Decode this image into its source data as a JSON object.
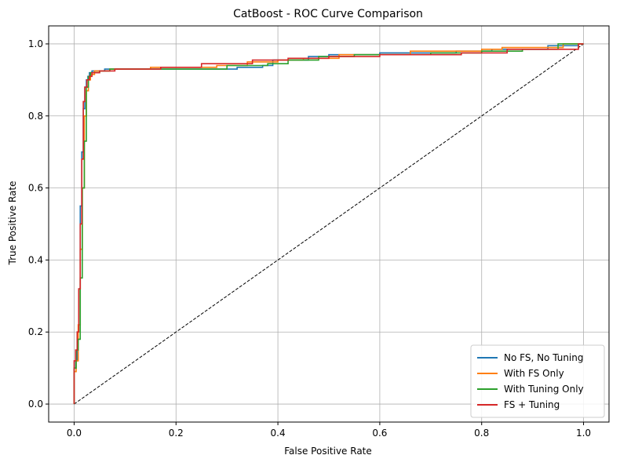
{
  "chart_data": {
    "type": "line",
    "title": "CatBoost - ROC Curve Comparison",
    "xlabel": "False Positive Rate",
    "ylabel": "True Positive Rate",
    "xlim": [
      -0.05,
      1.05
    ],
    "ylim": [
      -0.05,
      1.05
    ],
    "xticks": [
      0.0,
      0.2,
      0.4,
      0.6,
      0.8,
      1.0
    ],
    "yticks": [
      0.0,
      0.2,
      0.4,
      0.6,
      0.8,
      1.0
    ],
    "xtick_labels": [
      "0.0",
      "0.2",
      "0.4",
      "0.6",
      "0.8",
      "1.0"
    ],
    "ytick_labels": [
      "0.0",
      "0.2",
      "0.4",
      "0.6",
      "0.8",
      "1.0"
    ],
    "grid": true,
    "legend_position": "lower-right",
    "reference_line": {
      "style": "dashed",
      "color": "#000000",
      "x": [
        0,
        1
      ],
      "y": [
        0,
        1
      ]
    },
    "series": [
      {
        "name": "No FS, No Tuning",
        "color": "#1f77b4",
        "x": [
          0,
          0,
          0.003,
          0.003,
          0.006,
          0.006,
          0.009,
          0.009,
          0.012,
          0.012,
          0.015,
          0.015,
          0.018,
          0.018,
          0.021,
          0.021,
          0.024,
          0.024,
          0.027,
          0.027,
          0.03,
          0.03,
          0.035,
          0.035,
          0.06,
          0.06,
          0.12,
          0.12,
          0.25,
          0.25,
          0.32,
          0.32,
          0.37,
          0.37,
          0.39,
          0.39,
          0.46,
          0.46,
          0.5,
          0.5,
          0.6,
          0.6,
          0.75,
          0.75,
          0.82,
          0.82,
          0.93,
          0.93,
          0.99,
          0.99,
          1.0
        ],
        "y": [
          0,
          0.1,
          0.1,
          0.12,
          0.12,
          0.2,
          0.2,
          0.32,
          0.32,
          0.55,
          0.55,
          0.7,
          0.7,
          0.82,
          0.82,
          0.88,
          0.88,
          0.9,
          0.9,
          0.91,
          0.91,
          0.92,
          0.92,
          0.925,
          0.925,
          0.93,
          0.93,
          0.93,
          0.93,
          0.93,
          0.93,
          0.935,
          0.935,
          0.94,
          0.94,
          0.955,
          0.955,
          0.965,
          0.965,
          0.97,
          0.97,
          0.975,
          0.975,
          0.98,
          0.98,
          0.985,
          0.985,
          0.995,
          0.995,
          1.0,
          1.0
        ]
      },
      {
        "name": "With FS Only",
        "color": "#ff7f0e",
        "x": [
          0,
          0,
          0.004,
          0.004,
          0.008,
          0.008,
          0.012,
          0.012,
          0.016,
          0.016,
          0.02,
          0.02,
          0.024,
          0.024,
          0.028,
          0.028,
          0.032,
          0.032,
          0.04,
          0.04,
          0.07,
          0.07,
          0.15,
          0.15,
          0.28,
          0.28,
          0.34,
          0.34,
          0.4,
          0.4,
          0.45,
          0.45,
          0.52,
          0.52,
          0.66,
          0.66,
          0.8,
          0.8,
          0.84,
          0.84,
          0.96,
          0.96,
          1.0
        ],
        "y": [
          0,
          0.09,
          0.09,
          0.12,
          0.12,
          0.22,
          0.22,
          0.43,
          0.43,
          0.6,
          0.6,
          0.8,
          0.8,
          0.87,
          0.87,
          0.9,
          0.9,
          0.915,
          0.915,
          0.925,
          0.925,
          0.93,
          0.93,
          0.935,
          0.935,
          0.94,
          0.94,
          0.95,
          0.95,
          0.955,
          0.955,
          0.96,
          0.96,
          0.97,
          0.97,
          0.98,
          0.98,
          0.985,
          0.985,
          0.99,
          0.99,
          1.0,
          1.0
        ]
      },
      {
        "name": "With Tuning Only",
        "color": "#2ca02c",
        "x": [
          0,
          0,
          0.004,
          0.004,
          0.008,
          0.008,
          0.012,
          0.012,
          0.016,
          0.016,
          0.02,
          0.02,
          0.024,
          0.024,
          0.028,
          0.028,
          0.032,
          0.032,
          0.05,
          0.05,
          0.07,
          0.07,
          0.3,
          0.3,
          0.38,
          0.38,
          0.42,
          0.42,
          0.48,
          0.48,
          0.55,
          0.55,
          0.7,
          0.7,
          0.8,
          0.8,
          0.88,
          0.88,
          0.95,
          0.95,
          1.0
        ],
        "y": [
          0,
          0.1,
          0.1,
          0.15,
          0.15,
          0.18,
          0.18,
          0.35,
          0.35,
          0.6,
          0.6,
          0.73,
          0.73,
          0.88,
          0.88,
          0.91,
          0.91,
          0.92,
          0.92,
          0.925,
          0.925,
          0.93,
          0.93,
          0.94,
          0.94,
          0.945,
          0.945,
          0.955,
          0.955,
          0.965,
          0.965,
          0.97,
          0.97,
          0.975,
          0.975,
          0.98,
          0.98,
          0.985,
          0.985,
          1.0,
          1.0
        ]
      },
      {
        "name": "FS + Tuning",
        "color": "#d62728",
        "x": [
          0,
          0,
          0.003,
          0.003,
          0.006,
          0.006,
          0.009,
          0.009,
          0.012,
          0.012,
          0.015,
          0.015,
          0.018,
          0.018,
          0.021,
          0.021,
          0.025,
          0.025,
          0.03,
          0.03,
          0.035,
          0.035,
          0.05,
          0.05,
          0.08,
          0.08,
          0.17,
          0.17,
          0.25,
          0.25,
          0.35,
          0.35,
          0.42,
          0.42,
          0.5,
          0.5,
          0.6,
          0.6,
          0.76,
          0.76,
          0.85,
          0.85,
          0.99,
          0.99,
          1.0
        ],
        "y": [
          0,
          0.12,
          0.12,
          0.15,
          0.15,
          0.2,
          0.2,
          0.32,
          0.32,
          0.5,
          0.5,
          0.68,
          0.68,
          0.84,
          0.84,
          0.88,
          0.88,
          0.9,
          0.9,
          0.91,
          0.91,
          0.92,
          0.92,
          0.925,
          0.925,
          0.93,
          0.93,
          0.935,
          0.935,
          0.945,
          0.945,
          0.955,
          0.955,
          0.96,
          0.96,
          0.965,
          0.965,
          0.97,
          0.97,
          0.975,
          0.975,
          0.985,
          0.985,
          1.0,
          1.0
        ]
      }
    ]
  }
}
